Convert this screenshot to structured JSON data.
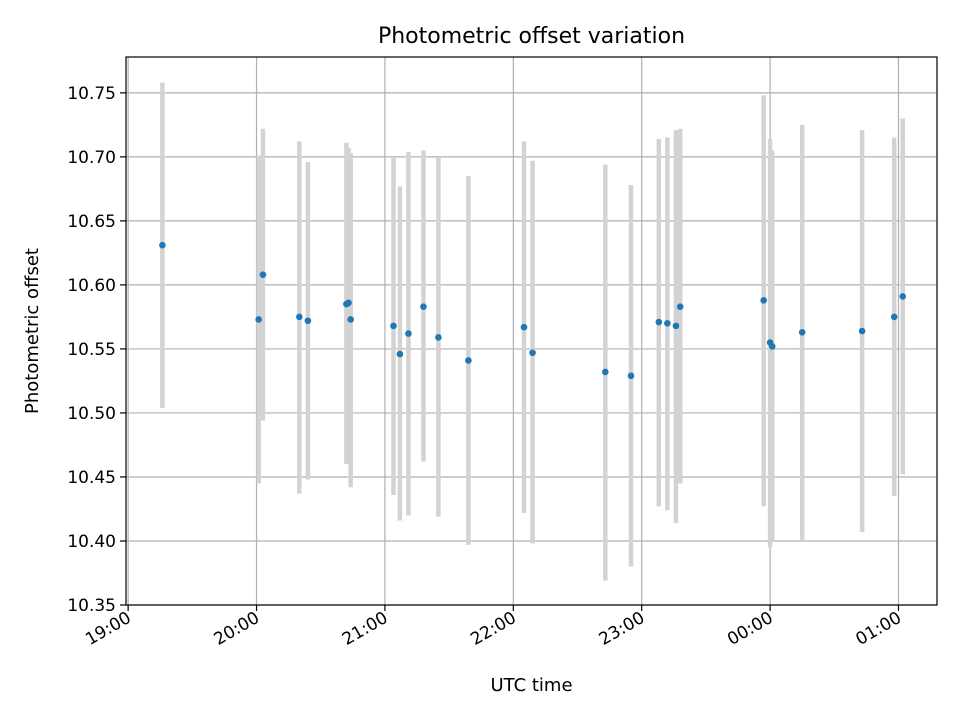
{
  "chart_data": {
    "type": "scatter",
    "title": "Photometric offset variation",
    "xlabel": "UTC time",
    "ylabel": "Photometric offset",
    "x_axis_type": "time",
    "x_tick_labels": [
      "19:00",
      "20:00",
      "21:00",
      "22:00",
      "23:00",
      "00:00",
      "01:00"
    ],
    "y_tick_labels": [
      "10.35",
      "10.40",
      "10.45",
      "10.50",
      "10.55",
      "10.60",
      "10.65",
      "10.70",
      "10.75"
    ],
    "xlim": [
      "19:00",
      "01:18"
    ],
    "ylim": [
      10.35,
      10.778
    ],
    "grid": true,
    "legend": "none",
    "point_color": "#1f77b4",
    "errorbar_color": "#d3d3d3",
    "series": [
      {
        "points": [
          {
            "x": "19:16",
            "y": 10.631,
            "y_low": 10.504,
            "y_high": 10.758
          },
          {
            "x": "20:01",
            "y": 10.573,
            "y_low": 10.445,
            "y_high": 10.701
          },
          {
            "x": "20:03",
            "y": 10.608,
            "y_low": 10.494,
            "y_high": 10.722
          },
          {
            "x": "20:20",
            "y": 10.575,
            "y_low": 10.437,
            "y_high": 10.712
          },
          {
            "x": "20:24",
            "y": 10.572,
            "y_low": 10.448,
            "y_high": 10.696
          },
          {
            "x": "20:42",
            "y": 10.585,
            "y_low": 10.46,
            "y_high": 10.711
          },
          {
            "x": "20:43",
            "y": 10.586,
            "y_low": 10.467,
            "y_high": 10.707
          },
          {
            "x": "20:44",
            "y": 10.573,
            "y_low": 10.442,
            "y_high": 10.703
          },
          {
            "x": "21:04",
            "y": 10.568,
            "y_low": 10.436,
            "y_high": 10.7
          },
          {
            "x": "21:07",
            "y": 10.546,
            "y_low": 10.416,
            "y_high": 10.677
          },
          {
            "x": "21:11",
            "y": 10.562,
            "y_low": 10.42,
            "y_high": 10.704
          },
          {
            "x": "21:18",
            "y": 10.583,
            "y_low": 10.462,
            "y_high": 10.705
          },
          {
            "x": "21:25",
            "y": 10.559,
            "y_low": 10.419,
            "y_high": 10.7
          },
          {
            "x": "21:39",
            "y": 10.541,
            "y_low": 10.397,
            "y_high": 10.685
          },
          {
            "x": "22:05",
            "y": 10.567,
            "y_low": 10.422,
            "y_high": 10.712
          },
          {
            "x": "22:09",
            "y": 10.547,
            "y_low": 10.398,
            "y_high": 10.697
          },
          {
            "x": "22:43",
            "y": 10.532,
            "y_low": 10.369,
            "y_high": 10.694
          },
          {
            "x": "22:55",
            "y": 10.529,
            "y_low": 10.38,
            "y_high": 10.678
          },
          {
            "x": "23:08",
            "y": 10.571,
            "y_low": 10.427,
            "y_high": 10.714
          },
          {
            "x": "23:12",
            "y": 10.57,
            "y_low": 10.424,
            "y_high": 10.715
          },
          {
            "x": "23:16",
            "y": 10.568,
            "y_low": 10.414,
            "y_high": 10.721
          },
          {
            "x": "23:18",
            "y": 10.583,
            "y_low": 10.445,
            "y_high": 10.722
          },
          {
            "x": "23:57",
            "y": 10.588,
            "y_low": 10.427,
            "y_high": 10.748
          },
          {
            "x": "00:00",
            "y": 10.555,
            "y_low": 10.395,
            "y_high": 10.714
          },
          {
            "x": "00:01",
            "y": 10.552,
            "y_low": 10.4,
            "y_high": 10.705
          },
          {
            "x": "00:15",
            "y": 10.563,
            "y_low": 10.401,
            "y_high": 10.725
          },
          {
            "x": "00:43",
            "y": 10.564,
            "y_low": 10.407,
            "y_high": 10.721
          },
          {
            "x": "00:58",
            "y": 10.575,
            "y_low": 10.435,
            "y_high": 10.715
          },
          {
            "x": "01:02",
            "y": 10.591,
            "y_low": 10.452,
            "y_high": 10.73
          }
        ]
      }
    ]
  }
}
